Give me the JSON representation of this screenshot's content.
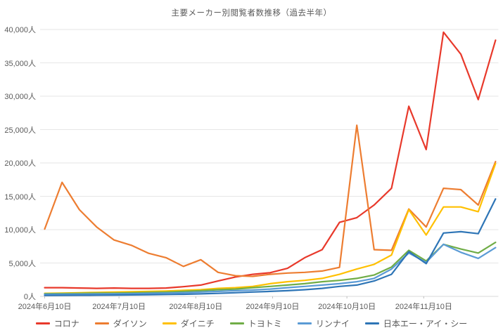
{
  "page": {
    "title": "主要メーカー別閲覧者数推移（過去半年）"
  },
  "axes": {
    "y_tick_labels": [
      "0人",
      "5,000人",
      "10,000人",
      "15,000人",
      "20,000人",
      "25,000人",
      "30,000人",
      "35,000人",
      "40,000人"
    ],
    "x_tick_labels": [
      "2024年6月10日",
      "2024年7月10日",
      "2024年8月10日",
      "2024年9月10日",
      "2024年10月10日",
      "2024年11月10日"
    ]
  },
  "style": {
    "grid_color": "#e6e6e6",
    "axis_color": "#d9d9d9",
    "text_color": "#595959"
  },
  "chart_data": {
    "type": "line",
    "title": "主要メーカー別閲覧者数推移（過去半年）",
    "xlabel": "",
    "ylabel": "",
    "ylim": [
      0,
      40000
    ],
    "y_tick_step": 5000,
    "grid": true,
    "legend_position": "bottom",
    "x_dates": [
      "2024-06-10",
      "2024-06-17",
      "2024-06-24",
      "2024-07-01",
      "2024-07-08",
      "2024-07-15",
      "2024-07-22",
      "2024-07-29",
      "2024-08-05",
      "2024-08-12",
      "2024-08-19",
      "2024-08-26",
      "2024-09-02",
      "2024-09-09",
      "2024-09-16",
      "2024-09-23",
      "2024-09-30",
      "2024-10-07",
      "2024-10-14",
      "2024-10-21",
      "2024-10-28",
      "2024-11-04",
      "2024-11-11",
      "2024-11-18",
      "2024-11-25",
      "2024-12-02",
      "2024-12-09"
    ],
    "x_axis_label_dates": [
      "2024-06-10",
      "2024-07-10",
      "2024-08-10",
      "2024-09-10",
      "2024-10-10",
      "2024-11-10"
    ],
    "series": [
      {
        "name": "コロナ",
        "id": "corona",
        "color": "#e8392b",
        "values": [
          1300,
          1300,
          1250,
          1200,
          1250,
          1200,
          1200,
          1250,
          1450,
          1700,
          2300,
          2900,
          3300,
          3550,
          4200,
          5800,
          7000,
          11100,
          11800,
          13700,
          16200,
          28500,
          22000,
          39600,
          36300,
          29500,
          38400
        ]
      },
      {
        "name": "ダイソン",
        "id": "dyson",
        "color": "#ed7d31",
        "values": [
          10100,
          17100,
          13000,
          10400,
          8450,
          7650,
          6450,
          5800,
          4500,
          5500,
          3600,
          3100,
          3000,
          3300,
          3500,
          3600,
          3800,
          4350,
          25650,
          7000,
          6900,
          13100,
          10400,
          16200,
          16000,
          13700,
          20200
        ]
      },
      {
        "name": "ダイニチ",
        "id": "dainichi",
        "color": "#ffc000",
        "values": [
          450,
          500,
          550,
          600,
          650,
          700,
          750,
          800,
          900,
          1000,
          1200,
          1300,
          1500,
          1900,
          2200,
          2400,
          2700,
          3300,
          4100,
          4800,
          6200,
          13000,
          9200,
          13400,
          13400,
          12700,
          19900
        ]
      },
      {
        "name": "トヨトミ",
        "id": "toyotomi",
        "color": "#70ad47",
        "values": [
          400,
          420,
          450,
          480,
          500,
          550,
          600,
          650,
          750,
          850,
          1000,
          1100,
          1300,
          1500,
          1700,
          1900,
          2200,
          2400,
          2700,
          3200,
          4400,
          6900,
          5300,
          7800,
          7100,
          6500,
          8100
        ]
      },
      {
        "name": "リンナイ",
        "id": "rinnai",
        "color": "#5b9bd5",
        "values": [
          300,
          320,
          340,
          360,
          380,
          400,
          450,
          500,
          550,
          650,
          750,
          850,
          950,
          1100,
          1300,
          1500,
          1700,
          1900,
          2200,
          2700,
          4100,
          6500,
          5100,
          7800,
          6600,
          5700,
          7300
        ]
      },
      {
        "name": "日本エー・アイ・シー",
        "id": "nihon-aic",
        "color": "#2e75b6",
        "values": [
          150,
          160,
          170,
          180,
          200,
          220,
          250,
          280,
          320,
          380,
          450,
          550,
          650,
          750,
          850,
          1000,
          1200,
          1500,
          1700,
          2300,
          3300,
          6700,
          4900,
          9500,
          9700,
          9400,
          14600
        ]
      }
    ]
  }
}
